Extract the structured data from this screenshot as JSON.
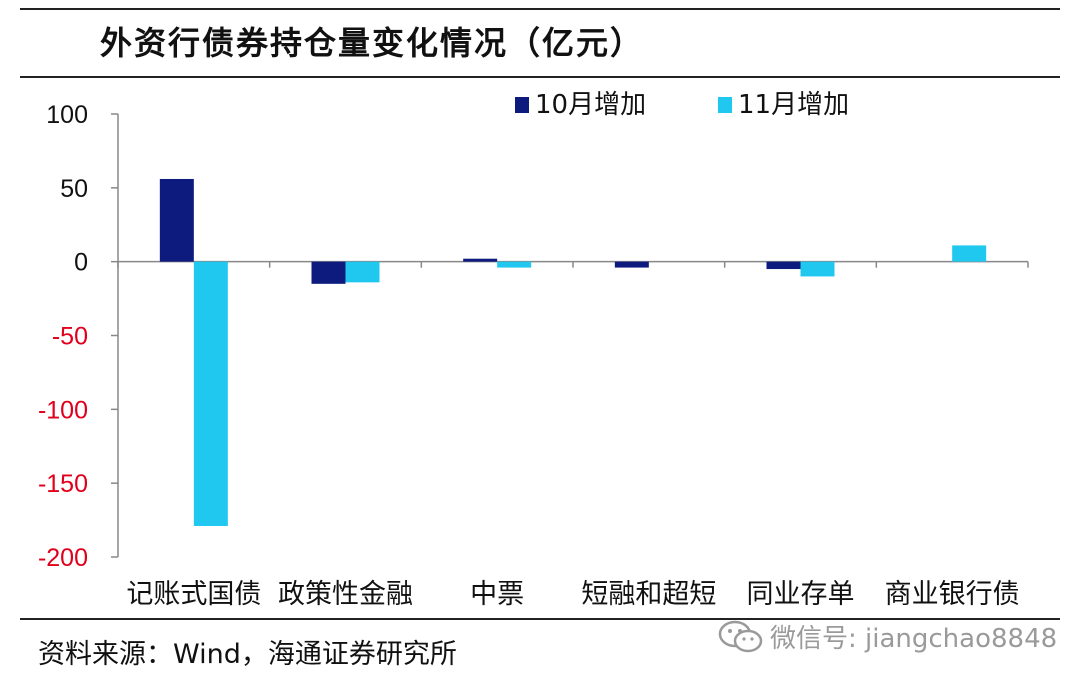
{
  "header": {
    "title": "外资行债券持仓量变化情况（亿元）"
  },
  "footer": {
    "source": "资料来源：Wind，海通证券研究所",
    "watermark": "微信号: jiangchao8848",
    "watermark_icon": "wechat-icon"
  },
  "colors": {
    "series_oct": "#0d1b7e",
    "series_nov": "#20c8f0",
    "negative_tick": "#e0001b",
    "axis": "#888888"
  },
  "chart_data": {
    "type": "bar",
    "title": "外资行债券持仓量变化情况（亿元）",
    "xlabel": "",
    "ylabel": "",
    "ylim": [
      -200,
      100
    ],
    "yticks": [
      100,
      50,
      0,
      -50,
      -100,
      -150,
      -200
    ],
    "ytick_labels": [
      "100",
      "50",
      "0",
      "-50",
      "-100",
      "-150",
      "-200"
    ],
    "categories": [
      "记账式国债",
      "政策性金融",
      "中票",
      "短融和超短",
      "同业存单",
      "商业银行债"
    ],
    "series": [
      {
        "name": "10月增加",
        "color": "#0d1b7e",
        "values": [
          56,
          -15,
          2,
          -4,
          -5,
          0
        ]
      },
      {
        "name": "11月增加",
        "color": "#20c8f0",
        "values": [
          -179,
          -14,
          -4,
          0,
          -10,
          11
        ]
      }
    ],
    "legend_position": "top-right",
    "grid": false
  }
}
